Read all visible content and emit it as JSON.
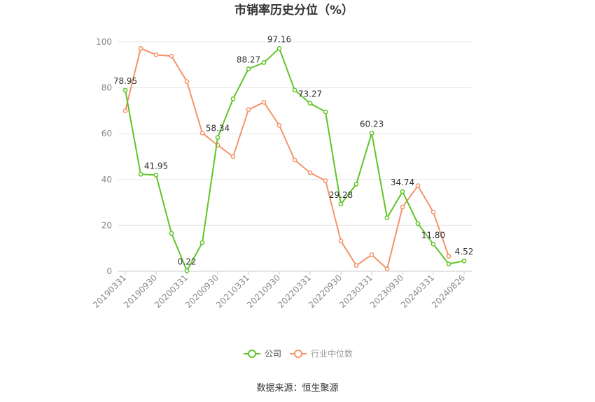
{
  "chart_data": {
    "type": "line",
    "title": "市销率历史分位（%）",
    "xlabel": "",
    "ylabel": "",
    "ylim": [
      0,
      100
    ],
    "yticks": [
      0,
      20,
      40,
      60,
      80,
      100
    ],
    "grid": true,
    "legend_position": "bottom",
    "x": [
      "20190331",
      "20190630",
      "20190930",
      "20191231",
      "20200331",
      "20200630",
      "20200930",
      "20201231",
      "20210331",
      "20210630",
      "20210930",
      "20211231",
      "20220331",
      "20220630",
      "20220930",
      "20221231",
      "20230331",
      "20230630",
      "20230930",
      "20231231",
      "20240331",
      "20240630",
      "20240826"
    ],
    "xtick_labels": [
      "20190331",
      "20190930",
      "20200331",
      "20200930",
      "20210331",
      "20210930",
      "20220331",
      "20220930",
      "20230331",
      "20230930",
      "20240331",
      "20240826"
    ],
    "series": [
      {
        "name": "公司",
        "color": "#5fc427",
        "values": [
          78.95,
          42.3,
          41.95,
          16.5,
          0.22,
          12.5,
          58.34,
          75.2,
          88.27,
          91.0,
          97.16,
          79.0,
          73.27,
          69.5,
          29.28,
          38.0,
          60.23,
          23.3,
          34.74,
          20.8,
          11.8,
          3.2,
          4.52
        ]
      },
      {
        "name": "行业中位数",
        "color": "#f5936a",
        "values": [
          70.0,
          97.2,
          94.4,
          93.8,
          82.7,
          60.3,
          55.0,
          50.0,
          70.5,
          73.7,
          63.6,
          48.5,
          43.0,
          39.5,
          13.2,
          2.5,
          7.2,
          1.0,
          28.0,
          37.3,
          25.8,
          6.5,
          null
        ]
      }
    ],
    "data_labels": [
      {
        "series": 0,
        "index": 0,
        "text": "78.95"
      },
      {
        "series": 0,
        "index": 2,
        "text": "41.95"
      },
      {
        "series": 0,
        "index": 4,
        "text": "0.22"
      },
      {
        "series": 0,
        "index": 6,
        "text": "58.34"
      },
      {
        "series": 0,
        "index": 8,
        "text": "88.27"
      },
      {
        "series": 0,
        "index": 10,
        "text": "97.16"
      },
      {
        "series": 0,
        "index": 12,
        "text": "73.27"
      },
      {
        "series": 0,
        "index": 14,
        "text": "29.28"
      },
      {
        "series": 0,
        "index": 16,
        "text": "60.23"
      },
      {
        "series": 0,
        "index": 18,
        "text": "34.74"
      },
      {
        "series": 0,
        "index": 20,
        "text": "11.80"
      },
      {
        "series": 0,
        "index": 22,
        "text": "4.52"
      }
    ],
    "source": "数据来源：恒生聚源"
  }
}
